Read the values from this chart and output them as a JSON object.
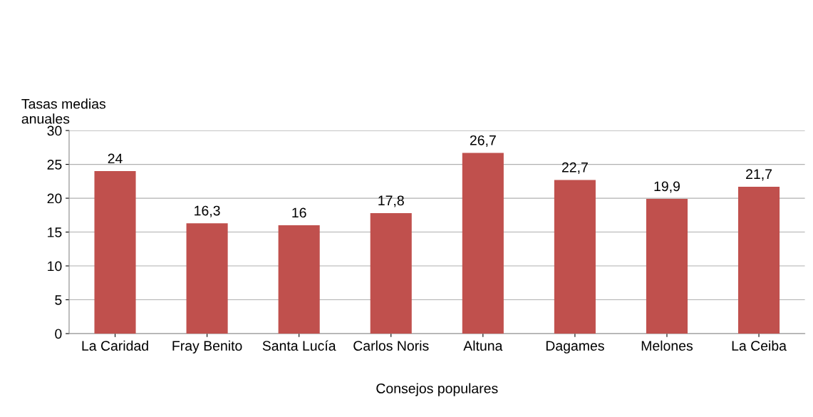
{
  "chart_data": {
    "type": "bar",
    "xlabel": "Consejos populares",
    "ylabel": "Tasas medias\nanuales",
    "categories": [
      "La Caridad",
      "Fray Benito",
      "Santa Lucía",
      "Carlos Noris",
      "Altuna",
      "Dagames",
      "Melones",
      "La Ceiba"
    ],
    "values": [
      24,
      16.3,
      16,
      17.8,
      26.7,
      22.7,
      19.9,
      21.7
    ],
    "value_labels": [
      "24",
      "16,3",
      "16",
      "17,8",
      "26,7",
      "22,7",
      "19,9",
      "21,7"
    ],
    "color": "#c0504d",
    "ylim": [
      0,
      30
    ],
    "yticks": [
      0,
      5,
      10,
      15,
      20,
      25,
      30
    ],
    "grid": "y",
    "legend": false
  }
}
